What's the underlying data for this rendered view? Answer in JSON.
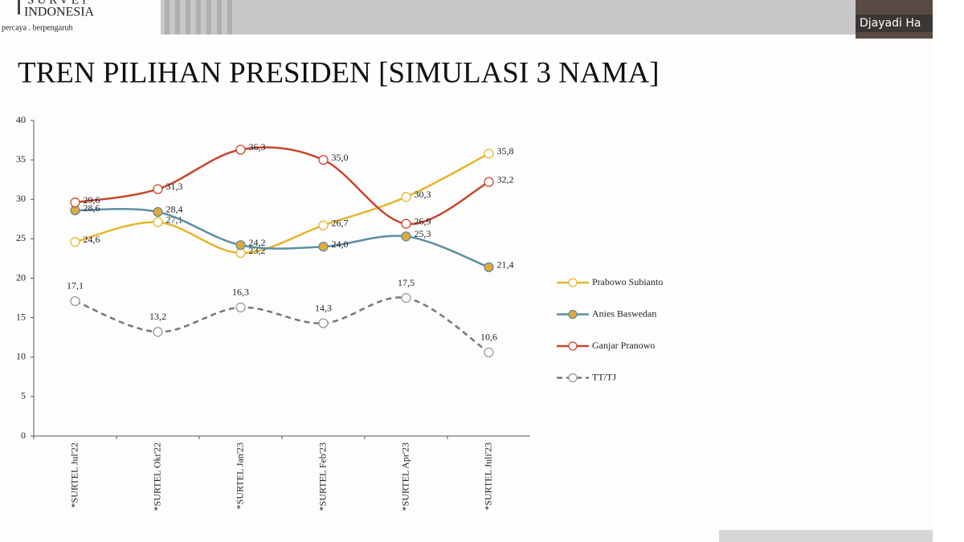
{
  "header": {
    "logo_top": "SURVEI",
    "logo_name": "INDONESIA",
    "tagline": "percaya . berpengaruh",
    "speaker": "Djayadi Ha"
  },
  "chart_data": {
    "type": "line",
    "title": "TREN PILIHAN PRESIDEN [SIMULASI 3 NAMA]",
    "categories": [
      "*SURTEL Jul'22",
      "*SURTEL Okt'22",
      "*SURTEL Jan'23",
      "*SURTEL Feb'23",
      "*SURTEL Apr'23",
      "*SURTEL Juli'23"
    ],
    "ylim": [
      0,
      40
    ],
    "yticks": [
      0,
      5,
      10,
      15,
      20,
      25,
      30,
      35,
      40
    ],
    "grid": false,
    "legend": "right",
    "series": [
      {
        "name": "Prabowo Subianto",
        "color": "#e6b52e",
        "marker_color": "#ffffff",
        "dash": false,
        "label_position": "right",
        "values": [
          24.6,
          27.1,
          23.2,
          26.7,
          30.3,
          35.8
        ],
        "value_labels": [
          "24,6",
          "27,1",
          "23,2",
          "26,7",
          "30,3",
          "35,8"
        ]
      },
      {
        "name": "Anies Baswedan",
        "color": "#5d8ea6",
        "marker_color": "#e2a935",
        "dash": false,
        "label_position": "right",
        "values": [
          28.6,
          28.4,
          24.2,
          24.0,
          25.3,
          21.4
        ],
        "value_labels": [
          "28,6",
          "28,4",
          "24,2",
          "24,0",
          "25,3",
          "21,4"
        ]
      },
      {
        "name": "Ganjar Pranowo",
        "color": "#c9462d",
        "marker_color": "#ffffff",
        "dash": false,
        "label_position": "right",
        "values": [
          29.6,
          31.3,
          36.3,
          35.0,
          26.9,
          32.2
        ],
        "value_labels": [
          "29,6",
          "31,3",
          "36,3",
          "35,0",
          "26,9",
          "32,2"
        ]
      },
      {
        "name": "TT/TJ",
        "color": "#777777",
        "marker_color": "#ffffff",
        "dash": true,
        "label_position": "above",
        "values": [
          17.1,
          13.2,
          16.3,
          14.3,
          17.5,
          10.6
        ],
        "value_labels": [
          "17,1",
          "13,2",
          "16,3",
          "14,3",
          "17,5",
          "10,6"
        ]
      }
    ]
  }
}
